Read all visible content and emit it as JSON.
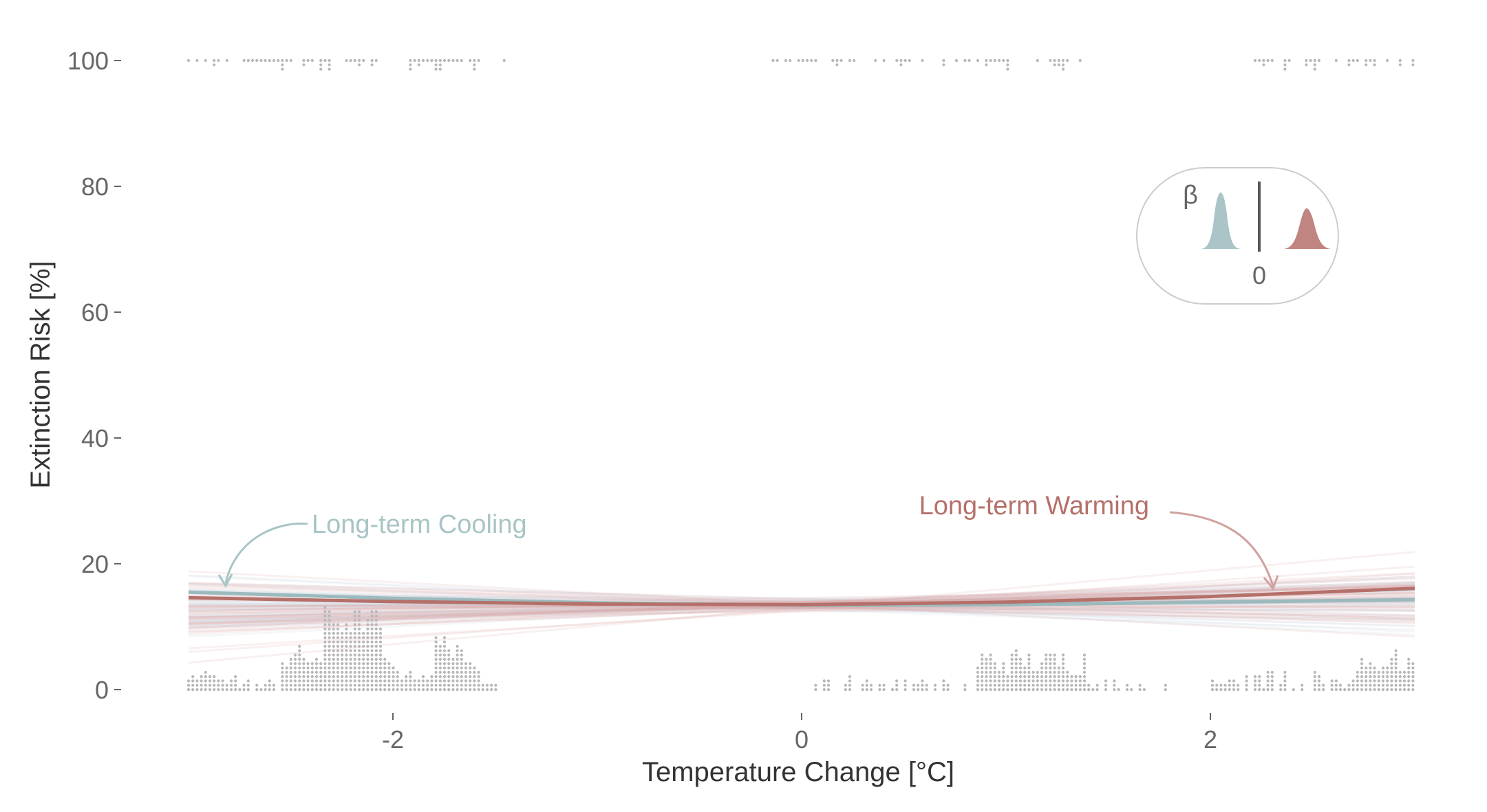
{
  "chart_data": {
    "type": "line",
    "xlabel": "Temperature Change [°C]",
    "ylabel": "Extinction Risk [%]",
    "xlim": [
      -3.0,
      3.0
    ],
    "ylim": [
      0,
      100
    ],
    "x_ticks": [
      {
        "value": -2,
        "label": "-2"
      },
      {
        "value": 0,
        "label": "0"
      },
      {
        "value": 2,
        "label": "2"
      }
    ],
    "y_ticks": [
      {
        "value": 0,
        "label": "0"
      },
      {
        "value": 20,
        "label": "20"
      },
      {
        "value": 40,
        "label": "40"
      },
      {
        "value": 60,
        "label": "60"
      },
      {
        "value": 80,
        "label": "80"
      },
      {
        "value": 100,
        "label": "100"
      }
    ],
    "grid": false,
    "colors": {
      "cooling": "#9bbabd",
      "warming": "#b5706a",
      "cooling_band": "#c5d3dc",
      "warming_band": "#e0aaaa",
      "dots": "#b8b8b8",
      "tick_text": "#666666"
    },
    "series": [
      {
        "name": "Long-term Cooling",
        "color": "#9bbabd",
        "x": [
          -3.0,
          -2.0,
          -1.0,
          0.0,
          1.0,
          2.0,
          3.0
        ],
        "y": [
          15.5,
          14.5,
          13.8,
          13.4,
          13.5,
          13.9,
          14.3
        ]
      },
      {
        "name": "Long-term Warming",
        "color": "#b5706a",
        "x": [
          -3.0,
          -2.0,
          -1.0,
          0.0,
          1.0,
          2.0,
          3.0
        ],
        "y": [
          14.6,
          14.0,
          13.6,
          13.5,
          13.9,
          14.8,
          16.1
        ]
      }
    ],
    "annotations": [
      {
        "text": "Long-term Cooling",
        "color": "#a9c4c5",
        "points_to": [
          -2.8,
          16.0
        ]
      },
      {
        "text": "Long-term Warming",
        "color": "#b5706a",
        "points_to": [
          2.3,
          15.5
        ]
      }
    ],
    "inset": {
      "symbol": "β",
      "zero_label": "0",
      "note": "posterior distributions of slope coefficient"
    },
    "dot_histograms": {
      "description": "distribution of observations at 0% (survived) and 100% (extinct)",
      "bottom_clusters": [
        {
          "x_range": [
            -3.0,
            -1.48
          ],
          "peak": 20
        },
        {
          "x_range": [
            0.05,
            1.8
          ],
          "peak": 10
        },
        {
          "x_range": [
            2.0,
            3.0
          ],
          "peak": 10
        }
      ],
      "top_clusters": [
        {
          "x_range": [
            -3.0,
            -1.44
          ]
        },
        {
          "x_range": [
            -0.18,
            1.4
          ]
        },
        {
          "x_range": [
            2.2,
            3.0
          ]
        }
      ]
    }
  }
}
